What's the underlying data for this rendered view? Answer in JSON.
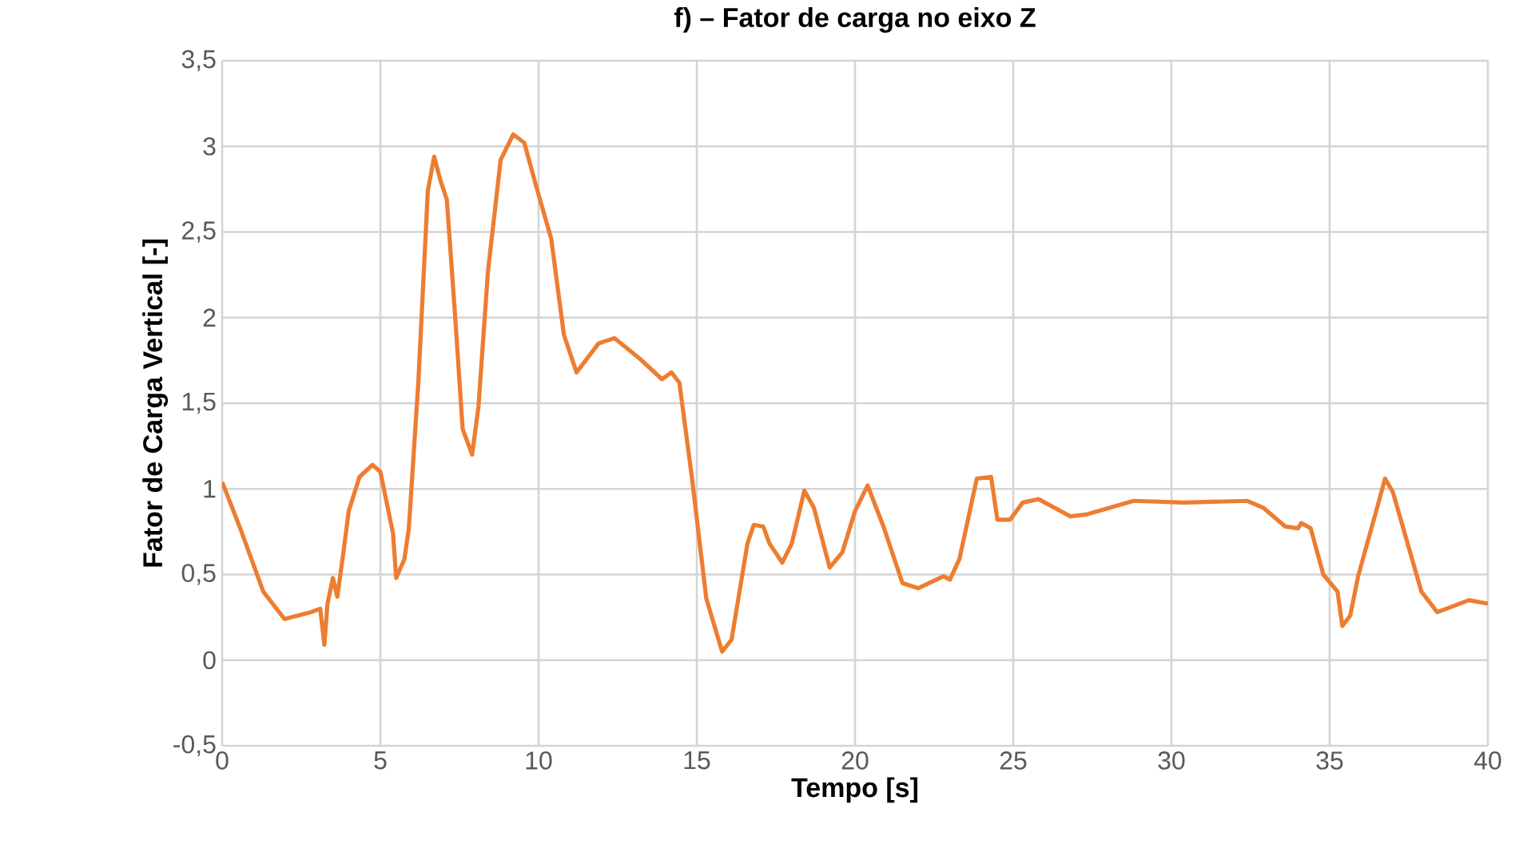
{
  "chart_data": {
    "type": "line",
    "title": "f) – Fator de carga no eixo Z",
    "xlabel": "Tempo [s]",
    "ylabel": "Fator de Carga Vertical [-]",
    "xlim": [
      0,
      40
    ],
    "xticks": [
      0,
      5,
      10,
      15,
      20,
      25,
      30,
      35,
      40
    ],
    "ylim": [
      -0.5,
      3.5
    ],
    "yticks": [
      {
        "value": -0.5,
        "label": "-0,5"
      },
      0,
      {
        "value": 0.5,
        "label": "0,5"
      },
      1,
      {
        "value": 1.5,
        "label": "1,5"
      },
      2,
      {
        "value": 2.5,
        "label": "2,5"
      },
      3,
      {
        "value": 3.5,
        "label": "3,5"
      }
    ],
    "grid": true,
    "marker": "none",
    "line_style": "solid",
    "series": [
      {
        "color": "#ed7d31",
        "x": [
          0,
          0.55,
          1.3,
          1.97,
          2.8,
          3.1,
          3.23,
          3.33,
          3.5,
          3.64,
          3.84,
          4.0,
          4.34,
          4.75,
          5.0,
          5.4,
          5.5,
          5.76,
          5.9,
          6.2,
          6.5,
          6.7,
          6.9,
          7.1,
          7.37,
          7.6,
          7.9,
          8.1,
          8.4,
          8.8,
          9.2,
          9.55,
          9.95,
          10.4,
          10.8,
          11.2,
          11.9,
          12.4,
          13.2,
          13.9,
          14.2,
          14.45,
          14.85,
          15.3,
          15.8,
          16.1,
          16.6,
          16.8,
          17.1,
          17.3,
          17.7,
          18.0,
          18.4,
          18.7,
          19.2,
          19.6,
          20.0,
          20.4,
          20.9,
          21.5,
          22.0,
          22.8,
          23.0,
          23.3,
          23.85,
          24.3,
          24.5,
          24.9,
          25.3,
          25.8,
          26.8,
          27.3,
          28.8,
          30.4,
          32.4,
          32.9,
          33.6,
          34.0,
          34.1,
          34.4,
          34.8,
          35.25,
          35.4,
          35.65,
          35.9,
          36.5,
          36.75,
          37.0,
          37.9,
          38.4,
          39.4,
          40
        ],
        "values": [
          1.04,
          0.78,
          0.4,
          0.24,
          0.28,
          0.3,
          0.09,
          0.33,
          0.48,
          0.37,
          0.64,
          0.87,
          1.07,
          1.14,
          1.1,
          0.74,
          0.48,
          0.59,
          0.77,
          1.62,
          2.74,
          2.94,
          2.8,
          2.69,
          1.99,
          1.35,
          1.2,
          1.48,
          2.27,
          2.92,
          3.07,
          3.02,
          2.75,
          2.46,
          1.9,
          1.68,
          1.85,
          1.88,
          1.76,
          1.64,
          1.68,
          1.62,
          1.06,
          0.36,
          0.05,
          0.12,
          0.68,
          0.79,
          0.78,
          0.68,
          0.57,
          0.68,
          0.99,
          0.89,
          0.54,
          0.63,
          0.87,
          1.02,
          0.78,
          0.45,
          0.42,
          0.49,
          0.47,
          0.59,
          1.06,
          1.07,
          0.82,
          0.82,
          0.92,
          0.94,
          0.84,
          0.85,
          0.93,
          0.92,
          0.93,
          0.89,
          0.78,
          0.77,
          0.8,
          0.77,
          0.5,
          0.4,
          0.2,
          0.26,
          0.49,
          0.89,
          1.06,
          0.98,
          0.4,
          0.28,
          0.35,
          0.33
        ]
      }
    ]
  }
}
